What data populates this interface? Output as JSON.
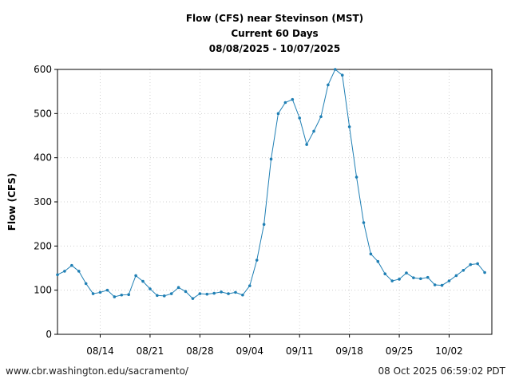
{
  "chart_data": {
    "type": "line",
    "title": [
      "Flow (CFS) near Stevinson (MST)",
      "Current 60 Days",
      "08/08/2025 - 10/07/2025"
    ],
    "ylabel": "Flow (CFS)",
    "xlabel": "",
    "ylim": [
      0,
      600
    ],
    "yticks": [
      0,
      100,
      200,
      300,
      400,
      500,
      600
    ],
    "xlim": [
      "2025-08-08",
      "2025-10-08"
    ],
    "xticks": [
      {
        "date": "2025-08-14",
        "label": "08/14"
      },
      {
        "date": "2025-08-21",
        "label": "08/21"
      },
      {
        "date": "2025-08-28",
        "label": "08/28"
      },
      {
        "date": "2025-09-04",
        "label": "09/04"
      },
      {
        "date": "2025-09-11",
        "label": "09/11"
      },
      {
        "date": "2025-09-18",
        "label": "09/18"
      },
      {
        "date": "2025-09-25",
        "label": "09/25"
      },
      {
        "date": "2025-10-02",
        "label": "10/02"
      }
    ],
    "grid": true,
    "line_color": "#1f7fb4",
    "series": [
      {
        "x": [
          "2025-08-08",
          "2025-08-09",
          "2025-08-10",
          "2025-08-11",
          "2025-08-12",
          "2025-08-13",
          "2025-08-14",
          "2025-08-15",
          "2025-08-16",
          "2025-08-17",
          "2025-08-18",
          "2025-08-19",
          "2025-08-20",
          "2025-08-21",
          "2025-08-22",
          "2025-08-23",
          "2025-08-24",
          "2025-08-25",
          "2025-08-26",
          "2025-08-27",
          "2025-08-28",
          "2025-08-29",
          "2025-08-30",
          "2025-08-31",
          "2025-09-01",
          "2025-09-02",
          "2025-09-03",
          "2025-09-04",
          "2025-09-05",
          "2025-09-06",
          "2025-09-07",
          "2025-09-08",
          "2025-09-09",
          "2025-09-10",
          "2025-09-11",
          "2025-09-12",
          "2025-09-13",
          "2025-09-14",
          "2025-09-15",
          "2025-09-16",
          "2025-09-17",
          "2025-09-18",
          "2025-09-19",
          "2025-09-20",
          "2025-09-21",
          "2025-09-22",
          "2025-09-23",
          "2025-09-24",
          "2025-09-25",
          "2025-09-26",
          "2025-09-27",
          "2025-09-28",
          "2025-09-29",
          "2025-09-30",
          "2025-10-01",
          "2025-10-02",
          "2025-10-03",
          "2025-10-04",
          "2025-10-05",
          "2025-10-06",
          "2025-10-07"
        ],
        "values": [
          135,
          143,
          156,
          143,
          115,
          92,
          95,
          100,
          85,
          89,
          90,
          133,
          120,
          103,
          88,
          87,
          92,
          106,
          97,
          81,
          92,
          91,
          93,
          96,
          92,
          95,
          89,
          110,
          168,
          249,
          397,
          500,
          525,
          532,
          490,
          430,
          460,
          493,
          565,
          600,
          587,
          470,
          356,
          253,
          182,
          165,
          137,
          121,
          125,
          139,
          128,
          126,
          129,
          112,
          111,
          121,
          133,
          145,
          158,
          160,
          140
        ]
      }
    ]
  },
  "footer": {
    "left": "www.cbr.washington.edu/sacramento/",
    "right": "08 Oct 2025 06:59:02 PDT"
  }
}
